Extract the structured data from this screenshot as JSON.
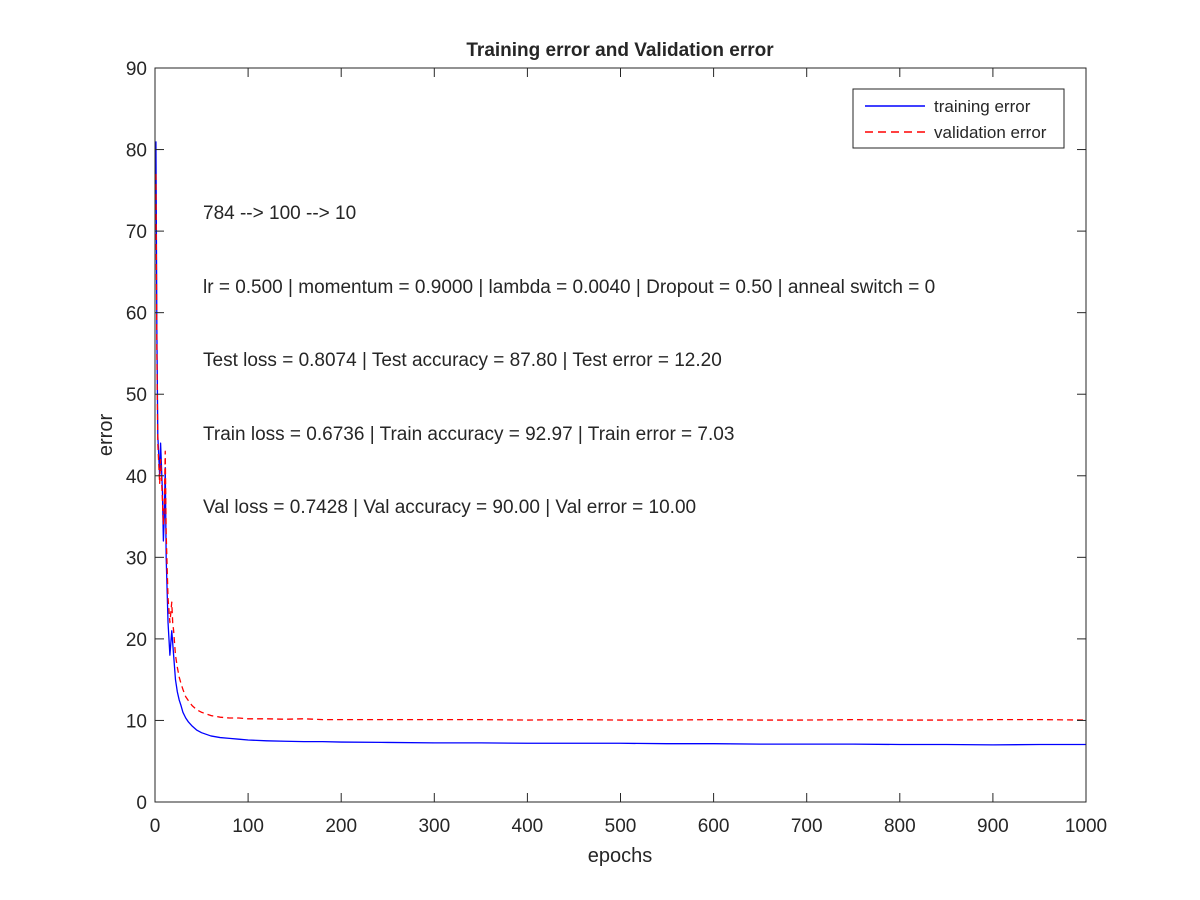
{
  "chart_data": {
    "type": "line",
    "title": "Training error and Validation error",
    "xlabel": "epochs",
    "ylabel": "error",
    "xlim": [
      0,
      1000
    ],
    "ylim": [
      0,
      90
    ],
    "xticks": [
      0,
      100,
      200,
      300,
      400,
      500,
      600,
      700,
      800,
      900,
      1000
    ],
    "yticks": [
      0,
      10,
      20,
      30,
      40,
      50,
      60,
      70,
      80,
      90
    ],
    "grid": false,
    "legend_position": "top-right",
    "series": [
      {
        "name": "training error",
        "color": "#0000ff",
        "style": "solid",
        "x": [
          1,
          2,
          3,
          5,
          6,
          8,
          9,
          10,
          11,
          12,
          14,
          16,
          18,
          19,
          20,
          22,
          24,
          26,
          28,
          30,
          33,
          36,
          40,
          45,
          50,
          55,
          60,
          70,
          80,
          90,
          100,
          120,
          140,
          160,
          180,
          200,
          250,
          300,
          350,
          400,
          450,
          500,
          550,
          600,
          650,
          700,
          750,
          800,
          850,
          900,
          950,
          1000
        ],
        "y": [
          81.0,
          58.0,
          45.0,
          40.0,
          44.0,
          38.0,
          32.0,
          35.0,
          41.0,
          30.0,
          22.0,
          18.0,
          21.0,
          19.5,
          18.0,
          15.0,
          13.5,
          12.5,
          11.8,
          11.0,
          10.3,
          9.8,
          9.3,
          8.8,
          8.5,
          8.3,
          8.1,
          7.9,
          7.8,
          7.7,
          7.6,
          7.5,
          7.45,
          7.4,
          7.4,
          7.35,
          7.3,
          7.25,
          7.25,
          7.2,
          7.2,
          7.2,
          7.15,
          7.15,
          7.1,
          7.1,
          7.1,
          7.05,
          7.05,
          7.0,
          7.05,
          7.05
        ]
      },
      {
        "name": "validation error",
        "color": "#ff0000",
        "style": "dashed",
        "x": [
          1,
          2,
          3,
          5,
          6,
          8,
          9,
          10,
          11,
          12,
          14,
          16,
          18,
          19,
          20,
          22,
          24,
          26,
          28,
          30,
          33,
          36,
          40,
          45,
          50,
          55,
          60,
          70,
          80,
          90,
          100,
          120,
          140,
          160,
          180,
          200,
          250,
          300,
          350,
          400,
          450,
          500,
          550,
          600,
          650,
          700,
          750,
          800,
          850,
          900,
          950,
          1000
        ],
        "y": [
          77.0,
          55.0,
          44.0,
          39.0,
          42.0,
          37.0,
          34.0,
          36.5,
          43.0,
          33.0,
          25.0,
          22.0,
          24.5,
          22.0,
          21.0,
          18.0,
          16.5,
          15.3,
          14.5,
          13.8,
          12.9,
          12.4,
          11.8,
          11.3,
          11.0,
          10.8,
          10.6,
          10.4,
          10.3,
          10.3,
          10.2,
          10.2,
          10.15,
          10.2,
          10.1,
          10.1,
          10.1,
          10.1,
          10.1,
          10.05,
          10.1,
          10.05,
          10.05,
          10.1,
          10.05,
          10.05,
          10.1,
          10.05,
          10.05,
          10.1,
          10.1,
          10.05
        ]
      }
    ],
    "annotations": [
      "784 --> 100 --> 10",
      "lr = 0.500 | momentum = 0.9000 | lambda = 0.0040 | Dropout = 0.50 | anneal switch = 0",
      "Test loss = 0.8074 | Test accuracy = 87.80 | Test error = 12.20",
      "Train loss = 0.6736 | Train accuracy = 92.97 | Train error = 7.03",
      "Val loss = 0.7428 | Val accuracy = 90.00 | Val error = 10.00"
    ]
  }
}
